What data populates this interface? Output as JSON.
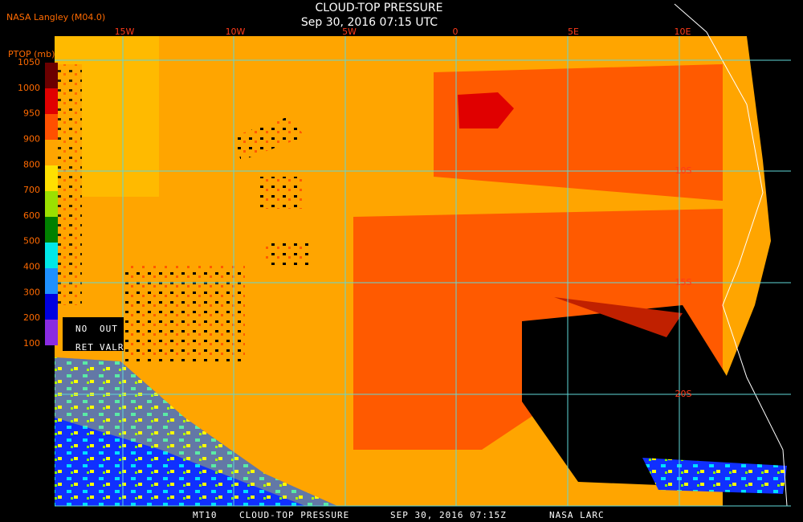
{
  "header": {
    "source": "NASA Langley (M04.0)",
    "title": "CLOUD-TOP PRESSURE",
    "subtitle": "Sep 30, 2016 07:15 UTC"
  },
  "colorbar": {
    "title": "PTOP (mb)",
    "labels": [
      1050,
      1000,
      950,
      900,
      800,
      700,
      600,
      500,
      400,
      300,
      200,
      100
    ],
    "special": [
      "NO",
      "OUT",
      "RET",
      "VALR"
    ]
  },
  "longitudes": [
    "15W",
    "10W",
    "5W",
    "0",
    "5E",
    "10E"
  ],
  "latitudes": [
    "10S",
    "15S",
    "20S"
  ],
  "footer": [
    "MT10",
    "CLOUD-TOP PRESSURE",
    "SEP 30, 2016 07:15Z",
    "NASA LARC"
  ]
}
